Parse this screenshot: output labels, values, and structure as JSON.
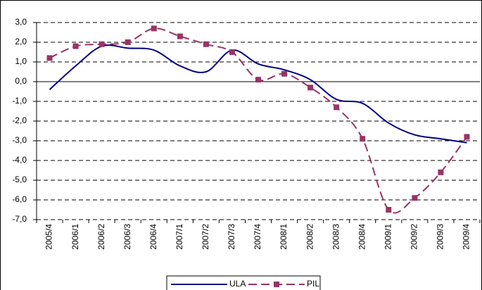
{
  "chart_data": {
    "type": "line",
    "categories": [
      "2005/4",
      "2006/1",
      "2006/2",
      "2006/3",
      "2006/4",
      "2007/1",
      "2007/2",
      "2007/3",
      "2007/4",
      "2008/1",
      "2008/2",
      "2008/3",
      "2008/4",
      "2009/1",
      "2009/2",
      "2009/3",
      "2009/4"
    ],
    "series": [
      {
        "name": "ULA",
        "color": "#000080",
        "values": [
          -0.4,
          0.8,
          1.8,
          1.7,
          1.6,
          0.8,
          0.5,
          1.6,
          0.9,
          0.6,
          0.1,
          -0.9,
          -1.1,
          -2.1,
          -2.7,
          -2.9,
          -3.1
        ]
      },
      {
        "name": "PIL",
        "color": "#993366",
        "values": [
          1.2,
          1.8,
          1.9,
          2.0,
          2.7,
          2.3,
          1.9,
          1.5,
          0.1,
          0.4,
          -0.3,
          -1.3,
          -2.9,
          -6.5,
          -5.9,
          -4.6,
          -2.8
        ]
      }
    ],
    "ylim": [
      -7,
      3
    ],
    "yticks": [
      {
        "value": 3,
        "label": "3,0"
      },
      {
        "value": 2,
        "label": "2,0"
      },
      {
        "value": 1,
        "label": "1,0"
      },
      {
        "value": 0,
        "label": "0,0"
      },
      {
        "value": -1,
        "label": "-1,0"
      },
      {
        "value": -2,
        "label": "-2,0"
      },
      {
        "value": -3,
        "label": "-3,0"
      },
      {
        "value": -4,
        "label": "-4,0"
      },
      {
        "value": -5,
        "label": "-5,0"
      },
      {
        "value": -6,
        "label": "-6,0"
      },
      {
        "value": -7,
        "label": "-7,0"
      }
    ],
    "grid": true
  }
}
